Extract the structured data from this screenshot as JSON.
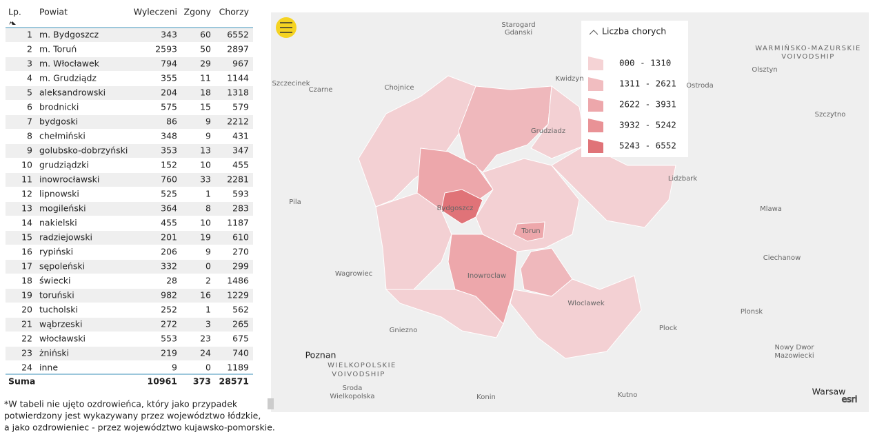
{
  "table": {
    "header": {
      "lp": "Lp.",
      "powiat": "Powiat",
      "wyleczeni": "Wyleczeni",
      "zgony": "Zgony",
      "chorzy": "Chorzy"
    },
    "rows": [
      [
        1,
        "m. Bydgoszcz",
        343,
        60,
        6552
      ],
      [
        2,
        "m. Toruń",
        2593,
        50,
        2897
      ],
      [
        3,
        "m. Włocławek",
        794,
        29,
        967
      ],
      [
        4,
        "m. Grudziądz",
        355,
        11,
        1144
      ],
      [
        5,
        "aleksandrowski",
        204,
        18,
        1318
      ],
      [
        6,
        "brodnicki",
        575,
        15,
        579
      ],
      [
        7,
        "bydgoski",
        86,
        9,
        2212
      ],
      [
        8,
        "chełmiński",
        348,
        9,
        431
      ],
      [
        9,
        "golubsko-dobrzyński",
        353,
        13,
        347
      ],
      [
        10,
        "grudziądzki",
        152,
        10,
        455
      ],
      [
        11,
        "inowrocławski",
        760,
        33,
        2281
      ],
      [
        12,
        "lipnowski",
        525,
        1,
        593
      ],
      [
        13,
        "mogileński",
        364,
        8,
        283
      ],
      [
        14,
        "nakielski",
        455,
        10,
        1187
      ],
      [
        15,
        "radziejowski",
        201,
        19,
        610
      ],
      [
        16,
        "rypiński",
        206,
        9,
        270
      ],
      [
        17,
        "sępoleński",
        332,
        0,
        299
      ],
      [
        18,
        "świecki",
        28,
        2,
        1486
      ],
      [
        19,
        "toruński",
        982,
        16,
        1229
      ],
      [
        20,
        "tucholski",
        252,
        1,
        562
      ],
      [
        21,
        "wąbrzeski",
        272,
        3,
        265
      ],
      [
        22,
        "włocławski",
        553,
        23,
        675
      ],
      [
        23,
        "żniński",
        219,
        24,
        740
      ],
      [
        24,
        "inne",
        9,
        0,
        1189
      ]
    ],
    "total": {
      "label": "Suma",
      "wyleczeni": 10961,
      "zgony": 373,
      "chorzy": 28571
    }
  },
  "footnote": [
    "*W tabeli nie ujęto ozdrowieńca, który jako przypadek",
    "potwierdzony jest wykazywany przez województwo łódzkie,",
    "a jako ozdrowieniec - przez województwo kujawsko-pomorskie."
  ],
  "legend": {
    "title": "Liczba chorych",
    "items": [
      {
        "label": "000 - 1310",
        "color": "#f5d3d5"
      },
      {
        "label": "1311 - 2621",
        "color": "#f1bdc0"
      },
      {
        "label": "2622 - 3931",
        "color": "#eda7ab"
      },
      {
        "label": "3932 - 5242",
        "color": "#e99296"
      },
      {
        "label": "5243 - 6552",
        "color": "#e07378"
      }
    ]
  },
  "map_labels": [
    "Starogard",
    "Gdanski",
    "Kwidzyn",
    "WARMIŃSKO-MAZURSKIE",
    "VOIVODSHIP",
    "Olsztyn",
    "Szczecinek",
    "Czarne",
    "Chojnice",
    "Ostroda",
    "Grudziadz",
    "Szczytno",
    "Lidzbark",
    "Pila",
    "Bydgoszcz",
    "Torun",
    "Mlawa",
    "Wagrowiec",
    "Inowroclaw",
    "Ciechanow",
    "Wloclawek",
    "Plonsk",
    "Plock",
    "Gniezno",
    "Poznan",
    "WIELKOPOLSKIE",
    "VOIVODSHIP",
    "Nowy Dwor",
    "Mazowiecki",
    "Sroda",
    "Wielkopolska",
    "Konin",
    "Kutno",
    "Warsaw",
    "esri"
  ]
}
